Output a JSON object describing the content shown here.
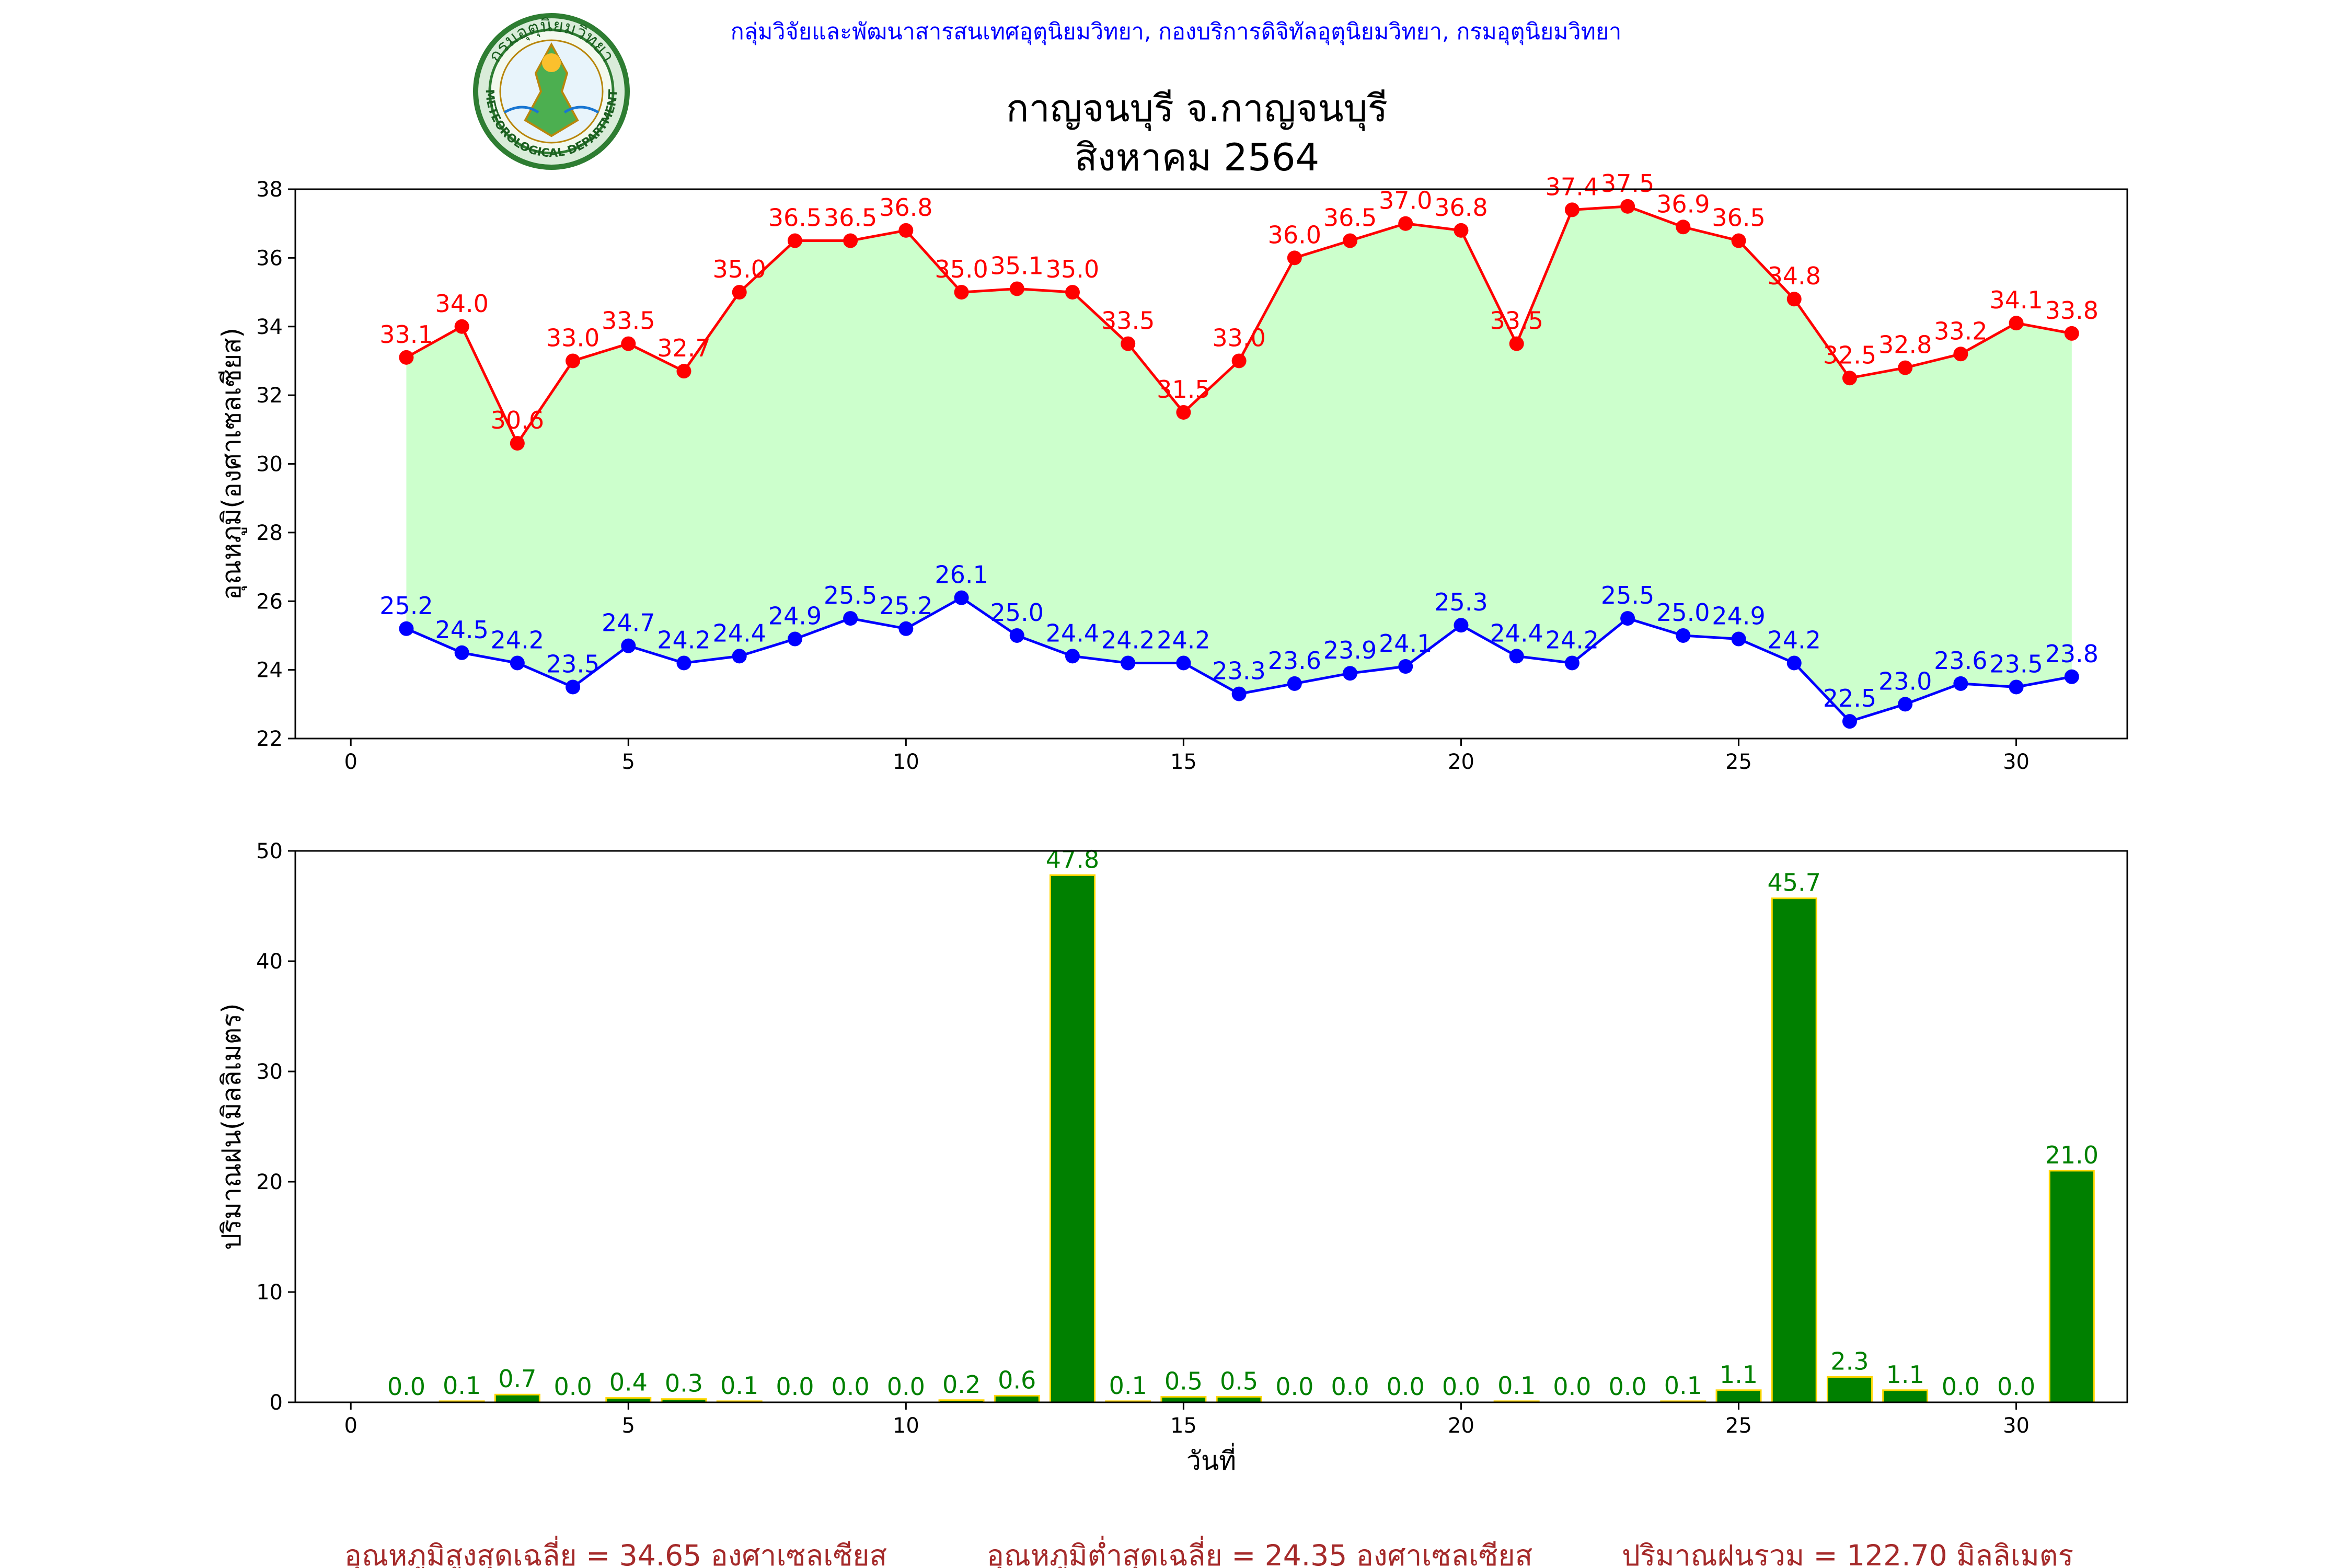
{
  "header": {
    "agency": "กลุ่มวิจัยและพัฒนาสารสนเทศอุตุนิยมวิทยา, กองบริการดิจิทัลอุตุนิยมวิทยา, กรมอุตุนิยมวิทยา",
    "title_line1": "กาญจนบุรี จ.กาญจนบุรี",
    "title_line2": "สิงหาคม 2564"
  },
  "logo": {
    "icon": "meteorological-department-seal-icon",
    "text_top": "กรมอุตุนิยมวิทยา",
    "text_bottom": "METEOROLOGICAL DEPARTMENT"
  },
  "colors": {
    "agency_text": "#0000ff",
    "tmax": "#ff0000",
    "tmin": "#0000ff",
    "fill": "#ccffcc",
    "rain_bar": "#008000",
    "rain_edge": "#ffd700",
    "summary_text": "#a52a2a"
  },
  "chart_data": [
    {
      "type": "line",
      "ylabel": "อุณหภูมิ(องศาเซลเซียส)",
      "xlim": [
        -1,
        32
      ],
      "ylim": [
        22,
        38
      ],
      "xticks": [
        0,
        5,
        10,
        15,
        20,
        25,
        30
      ],
      "yticks": [
        22,
        24,
        26,
        28,
        30,
        32,
        34,
        36,
        38
      ],
      "fill_between": true,
      "x": [
        1,
        2,
        3,
        4,
        5,
        6,
        7,
        8,
        9,
        10,
        11,
        12,
        13,
        14,
        15,
        16,
        17,
        18,
        19,
        20,
        21,
        22,
        23,
        24,
        25,
        26,
        27,
        28,
        29,
        30,
        31
      ],
      "series": [
        {
          "key": "tmax",
          "values": [
            33.1,
            34.0,
            30.6,
            33.0,
            33.5,
            32.7,
            35.0,
            36.5,
            36.5,
            36.8,
            35.0,
            35.1,
            35.0,
            33.5,
            31.5,
            33.0,
            36.0,
            36.5,
            37.0,
            36.8,
            33.5,
            37.4,
            37.5,
            36.9,
            36.5,
            34.8,
            32.5,
            32.8,
            33.2,
            34.1,
            33.8
          ]
        },
        {
          "key": "tmin",
          "values": [
            25.2,
            24.5,
            24.2,
            23.5,
            24.7,
            24.2,
            24.4,
            24.9,
            25.5,
            25.2,
            26.1,
            25.0,
            24.4,
            24.2,
            24.2,
            23.3,
            23.6,
            23.9,
            24.1,
            25.3,
            24.4,
            24.2,
            25.5,
            25.0,
            24.9,
            24.2,
            22.5,
            23.0,
            23.6,
            23.5,
            23.8
          ]
        }
      ]
    },
    {
      "type": "bar",
      "ylabel": "ปริมาณฝน(มิลลิเมตร)",
      "xlabel": "วันที่",
      "xlim": [
        -1,
        32
      ],
      "ylim": [
        0,
        50
      ],
      "xticks": [
        0,
        5,
        10,
        15,
        20,
        25,
        30
      ],
      "yticks": [
        0,
        10,
        20,
        30,
        40,
        50
      ],
      "x": [
        1,
        2,
        3,
        4,
        5,
        6,
        7,
        8,
        9,
        10,
        11,
        12,
        13,
        14,
        15,
        16,
        17,
        18,
        19,
        20,
        21,
        22,
        23,
        24,
        25,
        26,
        27,
        28,
        29,
        30,
        31
      ],
      "values": [
        0.0,
        0.1,
        0.7,
        0.0,
        0.4,
        0.3,
        0.1,
        0.0,
        0.0,
        0.0,
        0.2,
        0.6,
        47.8,
        0.1,
        0.5,
        0.5,
        0.0,
        0.0,
        0.0,
        0.0,
        0.1,
        0.0,
        0.0,
        0.1,
        1.1,
        45.7,
        2.3,
        1.1,
        0.0,
        0.0,
        21.0
      ]
    }
  ],
  "summary": {
    "avg_max": "อุณหภูมิสูงสุดเฉลี่ย = 34.65 องศาเซลเซียส",
    "avg_min": "อุณหภูมิต่ำสุดเฉลี่ย = 24.35 องศาเซลเซียส",
    "total_rain": "ปริมาณฝนรวม = 122.70 มิลลิเมตร"
  }
}
